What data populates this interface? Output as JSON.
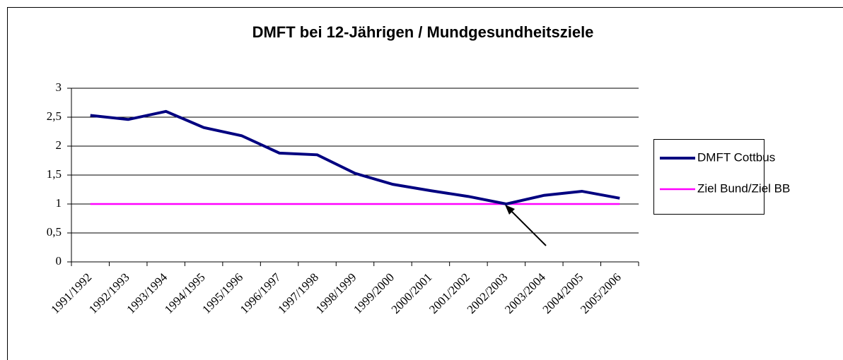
{
  "chart_data": {
    "type": "line",
    "title": "DMFT bei 12-Jährigen / Mundgesundheitsziele",
    "categories": [
      "1991/1992",
      "1992/1993",
      "1993/1994",
      "1994/1995",
      "1995/1996",
      "1996/1997",
      "1997/1998",
      "1998/1999",
      "1999/2000",
      "2000/2001",
      "2001/2002",
      "2002/2003",
      "2003/2004",
      "2004/2005",
      "2005/2006"
    ],
    "series": [
      {
        "name": "DMFT Cottbus",
        "color": "#000080",
        "values": [
          2.53,
          2.46,
          2.6,
          2.32,
          2.18,
          1.88,
          1.85,
          1.53,
          1.34,
          1.23,
          1.13,
          1.0,
          1.15,
          1.22,
          1.1
        ]
      },
      {
        "name": "Ziel Bund/Ziel BB",
        "color": "#ff00ff",
        "values": [
          1,
          1,
          1,
          1,
          1,
          1,
          1,
          1,
          1,
          1,
          1,
          1,
          1,
          1,
          1
        ]
      }
    ],
    "ylim": [
      0,
      3
    ],
    "yticks": [
      0,
      {
        "value": 0.5,
        "label": "0,5"
      },
      1,
      {
        "value": 1.5,
        "label": "1,5"
      },
      2,
      {
        "value": 2.5,
        "label": "2,5"
      },
      3
    ],
    "grid": true,
    "legend": "right"
  }
}
